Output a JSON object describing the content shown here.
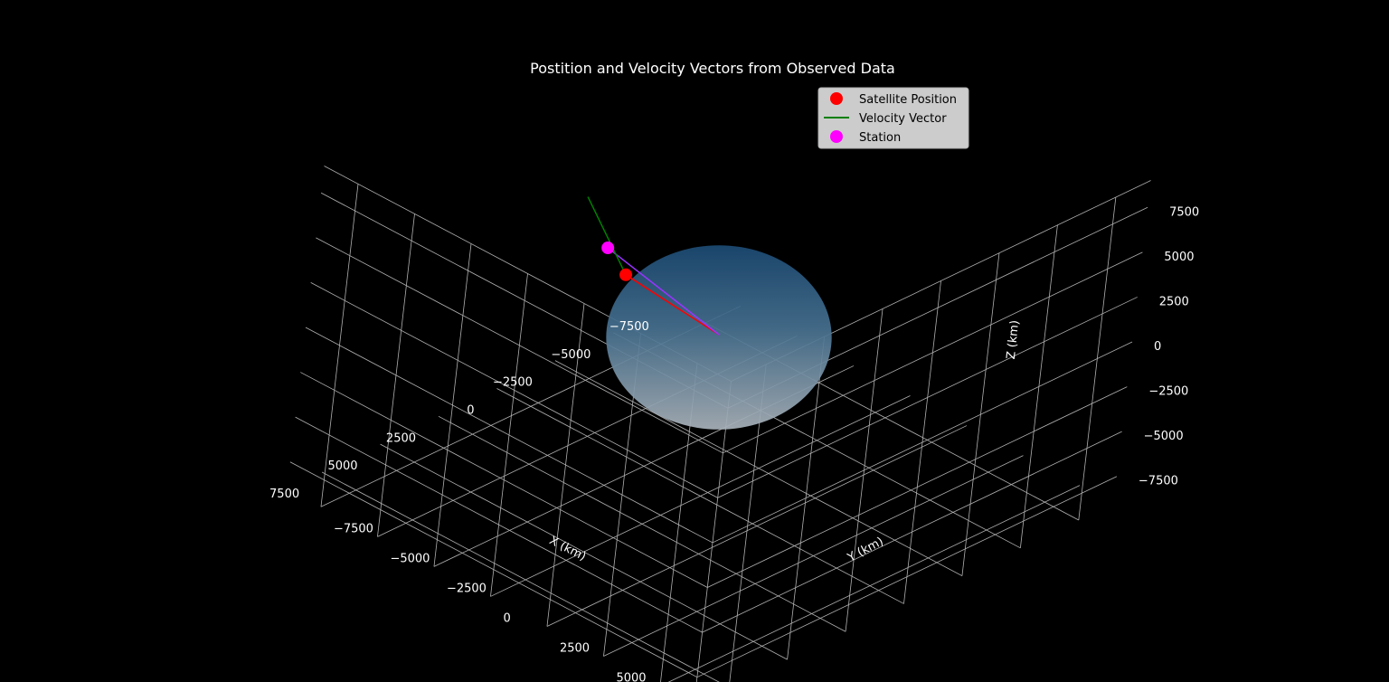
{
  "chart_data": {
    "type": "scatter3d",
    "title": "Postition and Velocity Vectors from Observed Data",
    "xlabel": "X (km)",
    "ylabel": "Y (km)",
    "zlabel": "Z (km)",
    "xlim": [
      -9000,
      9000
    ],
    "ylim": [
      -9000,
      9000
    ],
    "zlim": [
      -9000,
      9000
    ],
    "ticks": [
      -7500,
      -5000,
      -2500,
      0,
      2500,
      5000,
      7500
    ],
    "tick_labels": [
      "−7500",
      "−5000",
      "−2500",
      "0",
      "2500",
      "5000",
      "7500"
    ],
    "grid": true,
    "legend_position": "top-right",
    "earth_radius": 6371,
    "satellite_position": [
      5300,
      700,
      7100
    ],
    "velocity_vector_tip": [
      3400,
      -3000,
      7800
    ],
    "station_position": [
      3100,
      -2200,
      5300
    ],
    "legend": [
      {
        "label": "Satellite Position",
        "marker": "circle",
        "color": "#ff0000"
      },
      {
        "label": "Velocity Vector",
        "marker": "line",
        "color": "#008000"
      },
      {
        "label": "Station",
        "marker": "circle",
        "color": "#ff00ff"
      }
    ],
    "colors": {
      "satellite": "#ff0000",
      "velocity": "#008000",
      "station": "#ff00ff",
      "line_of_sight": "#9933ff",
      "grid": "#b0b0b0",
      "background": "#000000"
    }
  }
}
